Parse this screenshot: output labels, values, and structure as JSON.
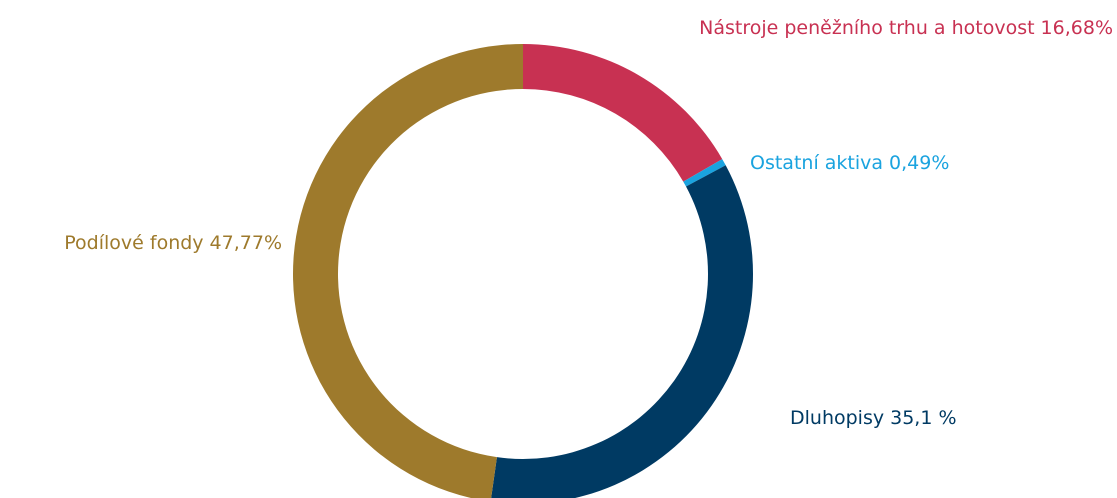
{
  "chart_data": {
    "type": "pie",
    "categories": [
      "Nástroje peněžního trhu a hotovost",
      "Ostatní aktiva",
      "Dluhopisy",
      "Podílové fondy"
    ],
    "values": [
      16.68,
      0.49,
      35.1,
      47.77
    ],
    "value_labels": [
      "16,68%",
      "0,49%",
      "35,1 %",
      "47,77%"
    ],
    "colors": [
      "#c83152",
      "#1aa3df",
      "#003a63",
      "#9e7a2c"
    ],
    "donut": true
  }
}
